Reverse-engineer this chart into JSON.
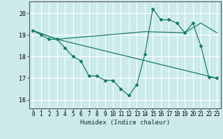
{
  "xlabel": "Humidex (Indice chaleur)",
  "background_color": "#cceaea",
  "grid_color": "#ffffff",
  "line_color": "#1a7a6a",
  "xlim": [
    -0.5,
    23.5
  ],
  "ylim": [
    15.6,
    20.55
  ],
  "xticks": [
    0,
    1,
    2,
    3,
    4,
    5,
    6,
    7,
    8,
    9,
    10,
    11,
    12,
    13,
    14,
    15,
    16,
    17,
    18,
    19,
    20,
    21,
    22,
    23
  ],
  "yticks": [
    16,
    17,
    18,
    19,
    20
  ],
  "series1_x": [
    0,
    1,
    2,
    3,
    4,
    5,
    6,
    7,
    8,
    9,
    10,
    11,
    12,
    13,
    14,
    15,
    16,
    17,
    18,
    19,
    20,
    21,
    22,
    23
  ],
  "series1_y": [
    19.2,
    19.0,
    18.8,
    18.8,
    18.4,
    18.0,
    17.8,
    17.1,
    17.1,
    16.9,
    16.9,
    16.5,
    16.2,
    16.7,
    18.1,
    20.2,
    19.7,
    19.7,
    19.55,
    19.1,
    19.55,
    18.5,
    17.05,
    17.0
  ],
  "series2_x": [
    0,
    3,
    23
  ],
  "series2_y": [
    19.2,
    18.8,
    17.0
  ],
  "series3_x": [
    0,
    3,
    14,
    19,
    21,
    23
  ],
  "series3_y": [
    19.2,
    18.8,
    19.15,
    19.1,
    19.55,
    19.1
  ]
}
